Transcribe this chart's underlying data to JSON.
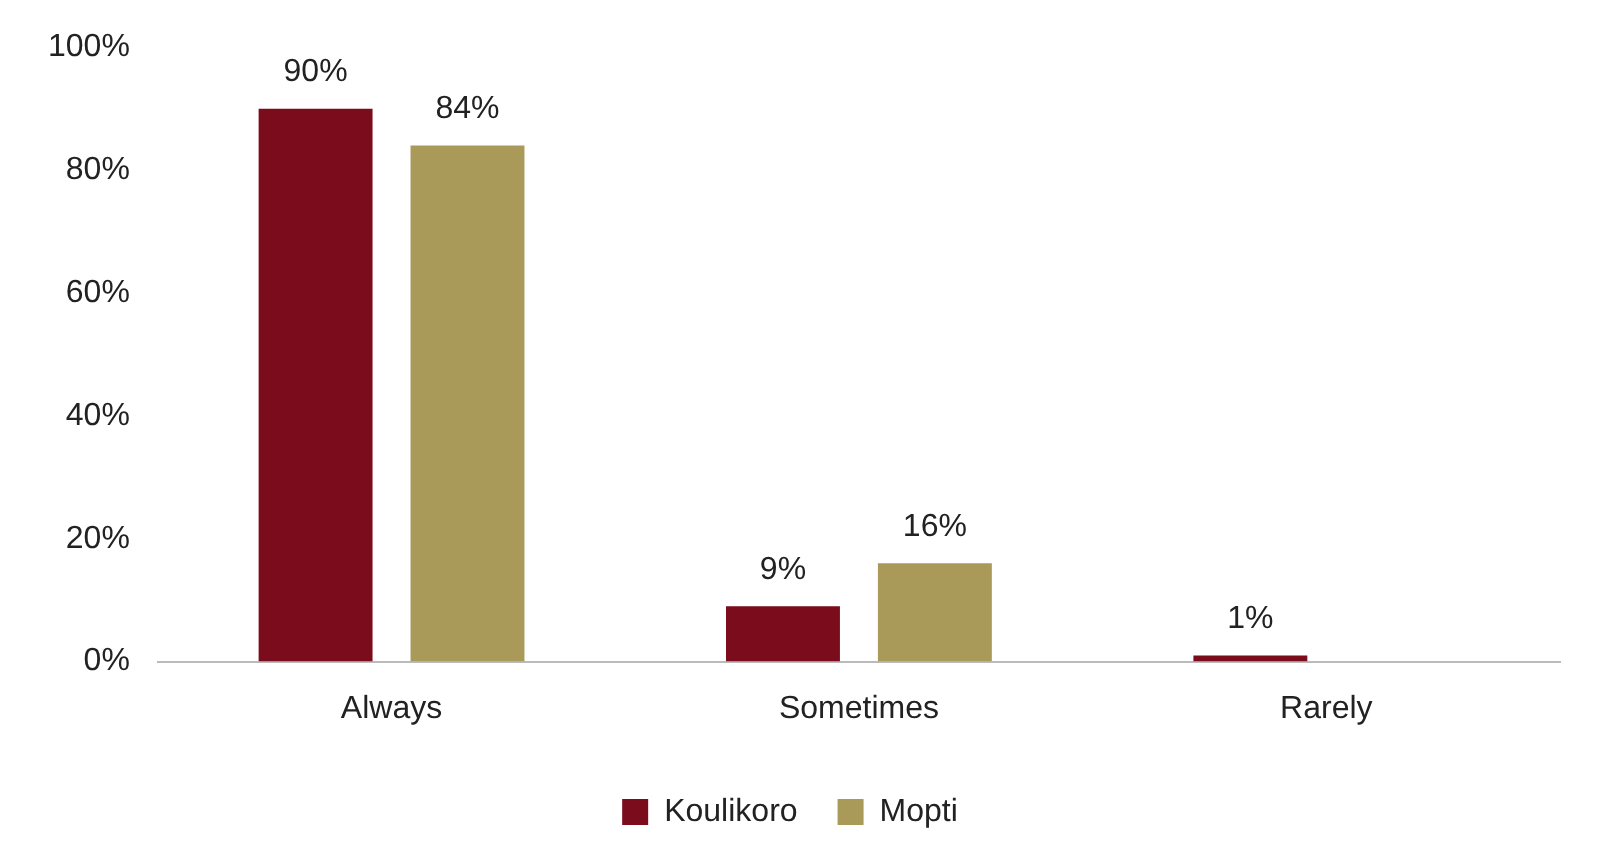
{
  "chart_data": {
    "type": "bar",
    "categories": [
      "Always",
      "Sometimes",
      "Rarely"
    ],
    "series": [
      {
        "name": "Koulikoro",
        "color": "#7b0c1c",
        "values": [
          90,
          9,
          1
        ],
        "value_labels": [
          "90%",
          "9%",
          "1%"
        ]
      },
      {
        "name": "Mopti",
        "color": "#a99a5a",
        "values": [
          84,
          16,
          null
        ],
        "value_labels": [
          "84%",
          "16%",
          null
        ]
      }
    ],
    "ylim": [
      0,
      100
    ],
    "yticks": [
      {
        "value": 0,
        "label": "0%"
      },
      {
        "value": 20,
        "label": "20%"
      },
      {
        "value": 40,
        "label": "40%"
      },
      {
        "value": 60,
        "label": "60%"
      },
      {
        "value": 80,
        "label": "80%"
      },
      {
        "value": 100,
        "label": "100%"
      }
    ],
    "grid": false,
    "legend": "bottom"
  }
}
